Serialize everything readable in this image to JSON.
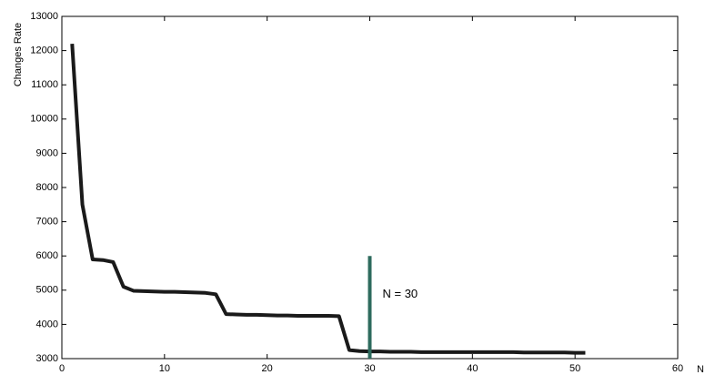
{
  "chart_data": {
    "type": "line",
    "y_label": "Changes Rate",
    "x_label": "N",
    "x": [
      1,
      2,
      3,
      4,
      5,
      6,
      7,
      8,
      9,
      10,
      11,
      12,
      13,
      14,
      15,
      16,
      17,
      18,
      19,
      20,
      21,
      22,
      23,
      24,
      25,
      26,
      27,
      28,
      29,
      30,
      31,
      32,
      33,
      34,
      35,
      36,
      37,
      38,
      39,
      40,
      41,
      42,
      43,
      44,
      45,
      46,
      47,
      48,
      49,
      50,
      51
    ],
    "series": [
      {
        "color": "#1a1a1a",
        "values": [
          12200,
          7500,
          5900,
          5880,
          5820,
          5100,
          4980,
          4970,
          4960,
          4950,
          4950,
          4940,
          4930,
          4920,
          4880,
          4300,
          4290,
          4280,
          4280,
          4270,
          4260,
          4260,
          4250,
          4250,
          4250,
          4250,
          4240,
          3250,
          3220,
          3210,
          3210,
          3200,
          3200,
          3200,
          3190,
          3190,
          3190,
          3190,
          3190,
          3190,
          3190,
          3190,
          3190,
          3190,
          3180,
          3180,
          3180,
          3180,
          3180,
          3170,
          3170
        ]
      }
    ],
    "xlim": [
      0,
      60
    ],
    "xticks": [
      0,
      10,
      20,
      30,
      40,
      50,
      60
    ],
    "ylim": [
      3000,
      13000
    ],
    "yticks": [
      3000,
      4000,
      5000,
      6000,
      7000,
      8000,
      9000,
      10000,
      11000,
      12000,
      13000
    ],
    "annotations": [
      {
        "text": "N = 30",
        "x": 30,
        "y": [
          3000,
          6000
        ],
        "color": "#2e6b5e"
      }
    ]
  }
}
